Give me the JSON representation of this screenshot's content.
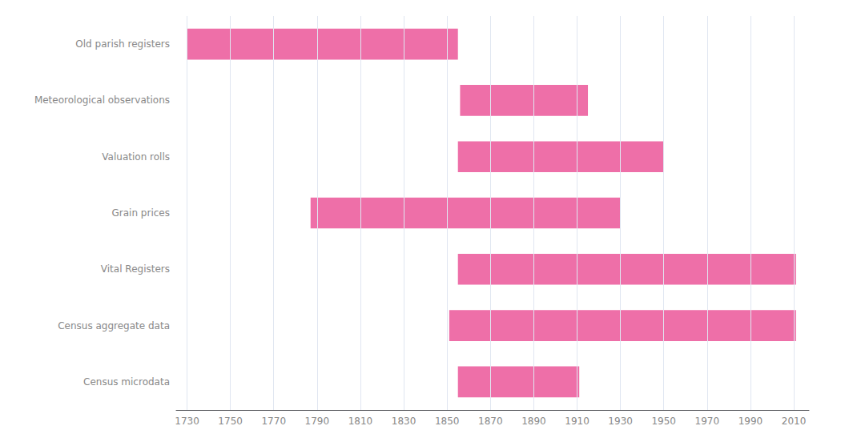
{
  "chart_data": {
    "type": "bar",
    "orientation": "horizontal",
    "categories": [
      "Census microdata",
      "Census aggregate data",
      "Vital Registers",
      "Grain prices",
      "Valuation rolls",
      "Meteorological observations",
      "Old parish registers"
    ],
    "values": [
      [
        1855,
        1911
      ],
      [
        1851,
        2011
      ],
      [
        1855,
        2011
      ],
      [
        1787,
        1930
      ],
      [
        1855,
        1950
      ],
      [
        1856,
        1915
      ],
      [
        1730,
        1855
      ]
    ],
    "color": "#ee6fa8",
    "xlim": [
      1725,
      2017
    ],
    "xticks": [
      1730,
      1750,
      1770,
      1790,
      1810,
      1830,
      1850,
      1870,
      1890,
      1910,
      1930,
      1950,
      1970,
      1990,
      2010
    ],
    "grid": true
  }
}
